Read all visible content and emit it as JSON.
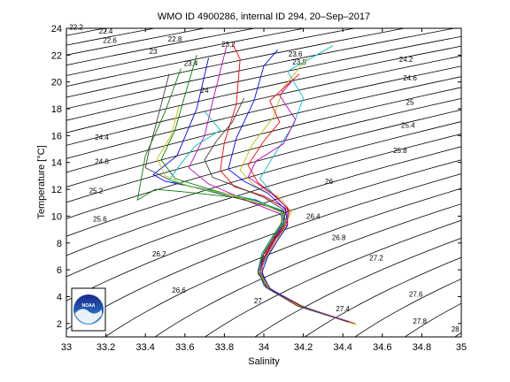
{
  "chart_data": {
    "type": "line",
    "title": "WMO ID 4900286, internal ID 294, 20–Sep–2017",
    "xlabel": "Salinity",
    "ylabel": "Temperature [°C]",
    "xlim": [
      33,
      35
    ],
    "ylim": [
      1,
      24
    ],
    "xticks": [
      "33",
      "33.2",
      "33.4",
      "33.6",
      "33.8",
      "34",
      "34.2",
      "34.4",
      "34.6",
      "34.8",
      "35"
    ],
    "yticks": [
      "2",
      "4",
      "6",
      "8",
      "10",
      "12",
      "14",
      "16",
      "18",
      "20",
      "22",
      "24"
    ],
    "grid": false,
    "isopycnals": {
      "levels": [
        22.2,
        22.4,
        22.6,
        22.8,
        23,
        23.2,
        23.4,
        23.6,
        23.8,
        24,
        24.2,
        24.4,
        24.6,
        24.8,
        25,
        25.2,
        25.4,
        25.6,
        25.8,
        26,
        26.2,
        26.4,
        26.6,
        26.8,
        27,
        27.2,
        27.4,
        27.6,
        27.8,
        28
      ],
      "labels": [
        {
          "text": "22.2",
          "x": 33.05,
          "y": 23.9
        },
        {
          "text": "22.4",
          "x": 33.2,
          "y": 23.6
        },
        {
          "text": "22.6",
          "x": 33.22,
          "y": 22.9
        },
        {
          "text": "22.8",
          "x": 33.55,
          "y": 23.0
        },
        {
          "text": "23",
          "x": 33.44,
          "y": 22.1
        },
        {
          "text": "23.2",
          "x": 33.82,
          "y": 22.6
        },
        {
          "text": "23.4",
          "x": 33.63,
          "y": 21.2
        },
        {
          "text": "23.6",
          "x": 34.16,
          "y": 21.9
        },
        {
          "text": "23.8",
          "x": 34.18,
          "y": 21.3
        },
        {
          "text": "24",
          "x": 33.7,
          "y": 19.2
        },
        {
          "text": "24.2",
          "x": 34.72,
          "y": 21.5
        },
        {
          "text": "24.4",
          "x": 33.18,
          "y": 15.7
        },
        {
          "text": "24.6",
          "x": 34.74,
          "y": 20.1
        },
        {
          "text": "24.8",
          "x": 33.18,
          "y": 13.9
        },
        {
          "text": "25",
          "x": 34.74,
          "y": 18.3
        },
        {
          "text": "25.2",
          "x": 33.15,
          "y": 11.7
        },
        {
          "text": "25.4",
          "x": 34.73,
          "y": 16.6
        },
        {
          "text": "25.6",
          "x": 33.17,
          "y": 9.6
        },
        {
          "text": "25.8",
          "x": 34.69,
          "y": 14.7
        },
        {
          "text": "26",
          "x": 34.33,
          "y": 12.4
        },
        {
          "text": "26.2",
          "x": 33.47,
          "y": 7.0
        },
        {
          "text": "26.4",
          "x": 34.25,
          "y": 9.8
        },
        {
          "text": "26.6",
          "x": 33.57,
          "y": 4.3
        },
        {
          "text": "26.8",
          "x": 34.38,
          "y": 8.2
        },
        {
          "text": "27",
          "x": 33.97,
          "y": 3.5
        },
        {
          "text": "27.2",
          "x": 34.57,
          "y": 6.7
        },
        {
          "text": "27.4",
          "x": 34.4,
          "y": 2.9
        },
        {
          "text": "27.6",
          "x": 34.77,
          "y": 4.0
        },
        {
          "text": "27.8",
          "x": 34.79,
          "y": 2.0
        },
        {
          "text": "28",
          "x": 34.97,
          "y": 1.4
        }
      ]
    },
    "series": [
      {
        "color": "#0000ff",
        "points": [
          [
            34.44,
            2.1
          ],
          [
            34.18,
            3.3
          ],
          [
            34.02,
            4.7
          ],
          [
            33.98,
            5.9
          ],
          [
            34.0,
            7.2
          ],
          [
            34.05,
            8.4
          ],
          [
            34.1,
            9.5
          ],
          [
            34.1,
            10.3
          ],
          [
            33.96,
            11.2
          ],
          [
            33.7,
            12.0
          ],
          [
            33.5,
            12.6
          ],
          [
            33.44,
            13.1
          ],
          [
            33.56,
            14.5
          ],
          [
            33.66,
            18.0
          ],
          [
            33.72,
            21.8
          ]
        ]
      },
      {
        "color": "#008000",
        "points": [
          [
            34.46,
            2.0
          ],
          [
            34.2,
            3.2
          ],
          [
            34.03,
            4.6
          ],
          [
            33.97,
            5.7
          ],
          [
            33.99,
            7.0
          ],
          [
            34.04,
            8.2
          ],
          [
            34.11,
            9.3
          ],
          [
            34.09,
            10.4
          ],
          [
            33.92,
            11.3
          ],
          [
            33.6,
            11.8
          ],
          [
            33.45,
            12.0
          ],
          [
            33.36,
            11.2
          ],
          [
            33.4,
            14.5
          ],
          [
            33.5,
            17.8
          ],
          [
            33.58,
            21.0
          ]
        ]
      },
      {
        "color": "#ff0000",
        "points": [
          [
            34.42,
            2.2
          ],
          [
            34.16,
            3.4
          ],
          [
            34.01,
            4.8
          ],
          [
            33.99,
            6.0
          ],
          [
            34.01,
            7.3
          ],
          [
            34.06,
            8.5
          ],
          [
            34.09,
            9.6
          ],
          [
            34.12,
            10.5
          ],
          [
            34.0,
            11.5
          ],
          [
            33.85,
            12.2
          ],
          [
            33.78,
            13.4
          ],
          [
            33.8,
            15.5
          ],
          [
            33.86,
            18.3
          ],
          [
            33.88,
            21.7
          ],
          [
            33.84,
            22.9
          ]
        ]
      },
      {
        "color": "#00bfbf",
        "points": [
          [
            34.45,
            2.0
          ],
          [
            34.19,
            3.3
          ],
          [
            34.02,
            4.6
          ],
          [
            33.98,
            5.8
          ],
          [
            34.02,
            7.1
          ],
          [
            34.07,
            8.3
          ],
          [
            34.1,
            9.4
          ],
          [
            34.13,
            10.4
          ],
          [
            34.05,
            11.6
          ],
          [
            33.98,
            12.8
          ],
          [
            34.05,
            14.5
          ],
          [
            34.15,
            16.8
          ],
          [
            34.2,
            18.8
          ],
          [
            34.12,
            20.8
          ],
          [
            34.35,
            22.7
          ]
        ]
      },
      {
        "color": "#bf00bf",
        "points": [
          [
            34.43,
            2.1
          ],
          [
            34.17,
            3.4
          ],
          [
            34.01,
            4.7
          ],
          [
            33.97,
            5.9
          ],
          [
            34.0,
            7.2
          ],
          [
            34.05,
            8.4
          ],
          [
            34.11,
            9.5
          ],
          [
            34.08,
            10.2
          ],
          [
            33.94,
            11.0
          ],
          [
            33.72,
            12.4
          ],
          [
            33.62,
            13.6
          ],
          [
            33.7,
            16.0
          ],
          [
            33.74,
            18.5
          ],
          [
            33.81,
            22.6
          ]
        ]
      },
      {
        "color": "#bfbf00",
        "points": [
          [
            34.47,
            1.9
          ],
          [
            34.21,
            3.2
          ],
          [
            34.04,
            4.5
          ],
          [
            33.98,
            5.7
          ],
          [
            34.0,
            6.9
          ],
          [
            34.05,
            8.1
          ],
          [
            34.1,
            9.2
          ],
          [
            34.14,
            10.3
          ],
          [
            34.08,
            11.4
          ],
          [
            33.95,
            12.3
          ],
          [
            33.88,
            13.4
          ],
          [
            33.94,
            15.3
          ],
          [
            34.05,
            17.4
          ],
          [
            34.1,
            19.6
          ],
          [
            34.22,
            21.8
          ]
        ]
      },
      {
        "color": "#404040",
        "points": [
          [
            34.44,
            2.1
          ],
          [
            34.18,
            3.3
          ],
          [
            34.02,
            4.7
          ],
          [
            33.98,
            5.9
          ],
          [
            34.01,
            7.1
          ],
          [
            34.06,
            8.4
          ],
          [
            34.11,
            9.5
          ],
          [
            34.1,
            10.4
          ],
          [
            33.9,
            11.2
          ],
          [
            33.55,
            12.5
          ],
          [
            33.4,
            13.6
          ],
          [
            33.42,
            15.0
          ],
          [
            33.46,
            17.2
          ],
          [
            33.52,
            20.6
          ]
        ]
      },
      {
        "color": "#0000ff",
        "points": [
          [
            34.45,
            2.0
          ],
          [
            34.19,
            3.3
          ],
          [
            34.03,
            4.6
          ],
          [
            33.99,
            5.8
          ],
          [
            34.02,
            7.0
          ],
          [
            34.07,
            8.2
          ],
          [
            34.12,
            9.3
          ],
          [
            34.11,
            10.5
          ],
          [
            34.02,
            11.7
          ],
          [
            33.9,
            12.6
          ],
          [
            33.82,
            13.5
          ],
          [
            33.86,
            15.8
          ],
          [
            33.95,
            18.6
          ],
          [
            34.0,
            21.2
          ],
          [
            34.07,
            22.4
          ]
        ]
      },
      {
        "color": "#008000",
        "points": [
          [
            34.43,
            2.1
          ],
          [
            34.17,
            3.4
          ],
          [
            34.01,
            4.7
          ],
          [
            33.97,
            5.9
          ],
          [
            33.99,
            7.2
          ],
          [
            34.04,
            8.4
          ],
          [
            34.09,
            9.5
          ],
          [
            34.09,
            10.3
          ],
          [
            33.96,
            11.1
          ],
          [
            33.75,
            11.9
          ],
          [
            33.55,
            12.8
          ],
          [
            33.48,
            14.2
          ],
          [
            33.55,
            16.4
          ],
          [
            33.6,
            19.0
          ],
          [
            33.66,
            22.0
          ]
        ]
      },
      {
        "color": "#ff0000",
        "points": [
          [
            34.46,
            2.0
          ],
          [
            34.2,
            3.2
          ],
          [
            34.03,
            4.5
          ],
          [
            33.98,
            5.7
          ],
          [
            34.0,
            6.9
          ],
          [
            34.05,
            8.2
          ],
          [
            34.11,
            9.3
          ],
          [
            34.13,
            10.4
          ],
          [
            34.06,
            11.5
          ],
          [
            33.97,
            12.5
          ],
          [
            33.92,
            13.8
          ],
          [
            34.0,
            15.6
          ],
          [
            34.08,
            17.0
          ],
          [
            34.03,
            18.6
          ],
          [
            34.18,
            20.6
          ]
        ]
      },
      {
        "color": "#00bfbf",
        "points": [
          [
            34.42,
            2.2
          ],
          [
            34.16,
            3.4
          ],
          [
            34.0,
            4.8
          ],
          [
            33.97,
            6.0
          ],
          [
            34.0,
            7.3
          ],
          [
            34.05,
            8.5
          ],
          [
            34.1,
            9.6
          ],
          [
            34.08,
            10.5
          ],
          [
            33.93,
            11.3
          ],
          [
            33.68,
            12.0
          ],
          [
            33.52,
            12.7
          ],
          [
            33.58,
            13.9
          ],
          [
            33.65,
            15.2
          ],
          [
            33.78,
            16.4
          ],
          [
            33.7,
            17.8
          ]
        ]
      },
      {
        "color": "#bf00bf",
        "points": [
          [
            34.44,
            2.1
          ],
          [
            34.18,
            3.3
          ],
          [
            34.02,
            4.6
          ],
          [
            33.98,
            5.8
          ],
          [
            34.01,
            7.0
          ],
          [
            34.06,
            8.3
          ],
          [
            34.12,
            9.4
          ],
          [
            34.12,
            10.6
          ],
          [
            34.03,
            11.8
          ],
          [
            33.92,
            12.9
          ],
          [
            33.96,
            14.1
          ],
          [
            34.1,
            15.4
          ],
          [
            34.16,
            17.2
          ],
          [
            34.08,
            19.0
          ],
          [
            34.15,
            20.2
          ]
        ]
      },
      {
        "color": "#bfbf00",
        "points": [
          [
            34.45,
            2.0
          ],
          [
            34.19,
            3.2
          ],
          [
            34.03,
            4.5
          ],
          [
            33.98,
            5.7
          ],
          [
            34.01,
            6.9
          ],
          [
            34.06,
            8.1
          ],
          [
            34.11,
            9.2
          ],
          [
            34.1,
            10.2
          ],
          [
            33.98,
            11.0
          ],
          [
            33.8,
            11.7
          ],
          [
            33.62,
            12.2
          ],
          [
            33.5,
            13.0
          ],
          [
            33.46,
            14.3
          ],
          [
            33.53,
            16.0
          ],
          [
            33.57,
            18.2
          ]
        ]
      },
      {
        "color": "#404040",
        "points": [
          [
            34.43,
            2.1
          ],
          [
            34.17,
            3.3
          ],
          [
            34.01,
            4.7
          ],
          [
            33.97,
            5.9
          ],
          [
            34.0,
            7.2
          ],
          [
            34.05,
            8.4
          ],
          [
            34.1,
            9.5
          ],
          [
            34.11,
            10.4
          ],
          [
            34.0,
            11.4
          ],
          [
            33.88,
            12.1
          ],
          [
            33.74,
            12.9
          ],
          [
            33.7,
            14.2
          ],
          [
            33.76,
            15.6
          ],
          [
            33.84,
            17.0
          ],
          [
            33.9,
            18.8
          ]
        ]
      }
    ],
    "logo_text": "NOAA"
  }
}
